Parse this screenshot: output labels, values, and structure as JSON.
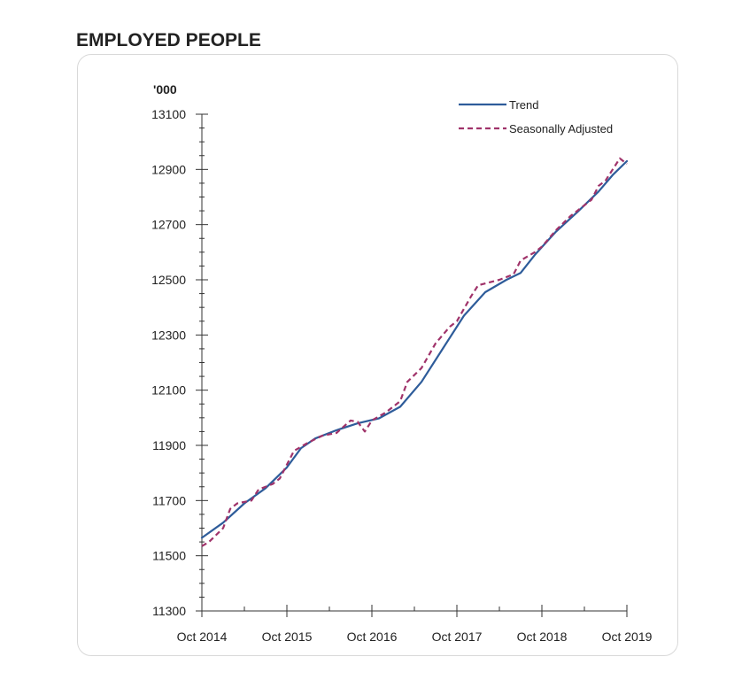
{
  "header": {
    "title": "EMPLOYED PEOPLE"
  },
  "chart_data": {
    "type": "line",
    "title": "",
    "xlabel": "",
    "ylabel": "'000",
    "ylim": [
      11300,
      13100
    ],
    "y_ticks": [
      "13100",
      "12900",
      "12700",
      "12500",
      "12300",
      "12100",
      "11900",
      "11700",
      "11500",
      "11300"
    ],
    "x_ticks": [
      "Oct 2014",
      "Oct 2015",
      "Oct 2016",
      "Oct 2017",
      "Oct 2018",
      "Oct 2019"
    ],
    "x_range": [
      "2014-10",
      "2019-10"
    ],
    "grid": false,
    "legend_position": "top-right",
    "series": [
      {
        "name": "Trend",
        "color": "#2e5c9a",
        "style": "solid",
        "points": [
          [
            "2014-10",
            11565
          ],
          [
            "2015-01",
            11620
          ],
          [
            "2015-04",
            11690
          ],
          [
            "2015-07",
            11745
          ],
          [
            "2015-10",
            11820
          ],
          [
            "2015-12",
            11890
          ],
          [
            "2016-02",
            11925
          ],
          [
            "2016-05",
            11955
          ],
          [
            "2016-08",
            11980
          ],
          [
            "2016-11",
            11998
          ],
          [
            "2017-02",
            12040
          ],
          [
            "2017-05",
            12130
          ],
          [
            "2017-08",
            12250
          ],
          [
            "2017-11",
            12370
          ],
          [
            "2018-02",
            12455
          ],
          [
            "2018-05",
            12500
          ],
          [
            "2018-07",
            12525
          ],
          [
            "2018-09",
            12590
          ],
          [
            "2018-12",
            12675
          ],
          [
            "2019-03",
            12745
          ],
          [
            "2019-06",
            12820
          ],
          [
            "2019-08",
            12880
          ],
          [
            "2019-10",
            12930
          ]
        ]
      },
      {
        "name": "Seasonally Adjusted",
        "color": "#a0336a",
        "style": "dashed",
        "points": [
          [
            "2014-10",
            11535
          ],
          [
            "2014-11",
            11550
          ],
          [
            "2015-01",
            11600
          ],
          [
            "2015-02",
            11670
          ],
          [
            "2015-03",
            11690
          ],
          [
            "2015-05",
            11700
          ],
          [
            "2015-06",
            11740
          ],
          [
            "2015-08",
            11760
          ],
          [
            "2015-09",
            11780
          ],
          [
            "2015-10",
            11830
          ],
          [
            "2015-11",
            11880
          ],
          [
            "2016-01",
            11910
          ],
          [
            "2016-03",
            11935
          ],
          [
            "2016-05",
            11945
          ],
          [
            "2016-07",
            11990
          ],
          [
            "2016-08",
            11985
          ],
          [
            "2016-09",
            11950
          ],
          [
            "2016-10",
            11990
          ],
          [
            "2016-12",
            12020
          ],
          [
            "2017-02",
            12060
          ],
          [
            "2017-03",
            12130
          ],
          [
            "2017-05",
            12180
          ],
          [
            "2017-07",
            12270
          ],
          [
            "2017-09",
            12330
          ],
          [
            "2017-10",
            12350
          ],
          [
            "2017-12",
            12440
          ],
          [
            "2018-01",
            12480
          ],
          [
            "2018-04",
            12500
          ],
          [
            "2018-06",
            12520
          ],
          [
            "2018-07",
            12570
          ],
          [
            "2018-09",
            12600
          ],
          [
            "2018-10",
            12620
          ],
          [
            "2018-12",
            12680
          ],
          [
            "2019-02",
            12730
          ],
          [
            "2019-05",
            12790
          ],
          [
            "2019-06",
            12840
          ],
          [
            "2019-07",
            12860
          ],
          [
            "2019-08",
            12900
          ],
          [
            "2019-09",
            12940
          ],
          [
            "2019-10",
            12920
          ]
        ]
      }
    ]
  }
}
